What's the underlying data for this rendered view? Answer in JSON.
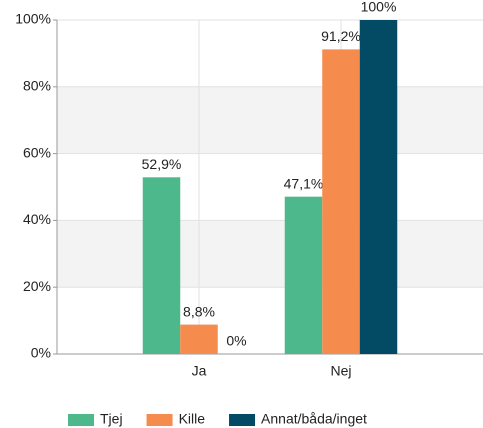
{
  "chart_data": {
    "type": "bar",
    "categories": [
      "Ja",
      "Nej"
    ],
    "series": [
      {
        "name": "Tjej",
        "color": "#4cb88c",
        "values": [
          52.9,
          47.1
        ],
        "value_labels": [
          "52,9%",
          "47,1%"
        ]
      },
      {
        "name": "Kille",
        "color": "#f58b4c",
        "values": [
          8.8,
          91.2
        ],
        "value_labels": [
          "8,8%",
          "91,2%"
        ]
      },
      {
        "name": "Annat/båda/inget",
        "color": "#034a64",
        "values": [
          0,
          100
        ],
        "value_labels": [
          "0%",
          "100%"
        ]
      }
    ],
    "ylim": [
      0,
      100
    ],
    "yticks": [
      {
        "value": 0,
        "label": "0%"
      },
      {
        "value": 20,
        "label": "20%"
      },
      {
        "value": 40,
        "label": "40%"
      },
      {
        "value": 60,
        "label": "60%"
      },
      {
        "value": 80,
        "label": "80%"
      },
      {
        "value": 100,
        "label": "100%"
      }
    ],
    "grid": true,
    "legend": "bottom"
  }
}
